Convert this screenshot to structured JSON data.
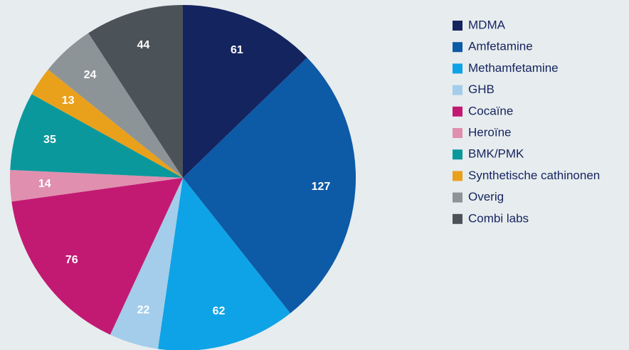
{
  "chart_data": {
    "type": "pie",
    "categories": [
      "MDMA",
      "Amfetamine",
      "Methamfetamine",
      "GHB",
      "Cocaïne",
      "Heroïne",
      "BMK/PMK",
      "Synthetische cathinonen",
      "Overig",
      "Combi labs"
    ],
    "values": [
      61,
      127,
      62,
      22,
      76,
      14,
      35,
      13,
      24,
      44
    ],
    "colors": [
      "#14245f",
      "#0d5aa7",
      "#0ea3e6",
      "#a3cdea",
      "#c21a72",
      "#e08fae",
      "#0b989c",
      "#e9a01b",
      "#8d9498",
      "#4b5359"
    ],
    "legend": "right"
  }
}
